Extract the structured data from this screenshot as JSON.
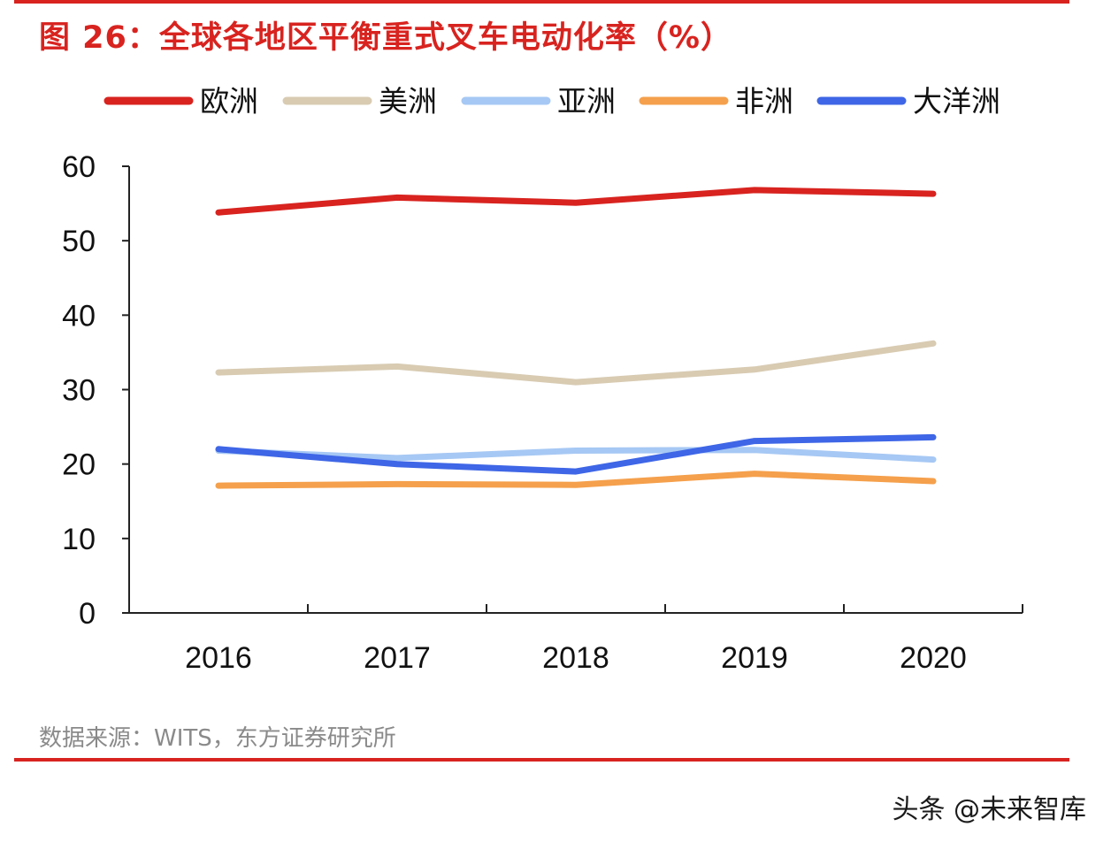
{
  "figure": {
    "title": "图 26：全球各地区平衡重式叉车电动化率（%）",
    "source": "数据来源：WITS，东方证券研究所",
    "watermark": "头条 @未来智库",
    "accent_color": "#d8231f"
  },
  "chart_data": {
    "type": "line",
    "title": "图 26：全球各地区平衡重式叉车电动化率（%）",
    "xlabel": "",
    "ylabel": "",
    "categories": [
      "2016",
      "2017",
      "2018",
      "2019",
      "2020"
    ],
    "ylim": [
      0,
      60
    ],
    "yticks": [
      0,
      10,
      20,
      30,
      40,
      50,
      60
    ],
    "grid": false,
    "legend_position": "top",
    "series": [
      {
        "name": "欧洲",
        "color": "#d8231f",
        "values": [
          53.8,
          55.8,
          55.1,
          56.8,
          56.3
        ]
      },
      {
        "name": "美洲",
        "color": "#d8cbb2",
        "values": [
          32.3,
          33.1,
          31.0,
          32.7,
          36.2
        ]
      },
      {
        "name": "亚洲",
        "color": "#a6c8f4",
        "values": [
          21.8,
          20.8,
          21.8,
          21.9,
          20.6
        ]
      },
      {
        "name": "非洲",
        "color": "#f5a04c",
        "values": [
          17.1,
          17.3,
          17.2,
          18.7,
          17.7
        ]
      },
      {
        "name": "大洋洲",
        "color": "#3e66e6",
        "values": [
          22.0,
          20.0,
          19.0,
          23.1,
          23.6
        ]
      }
    ]
  }
}
